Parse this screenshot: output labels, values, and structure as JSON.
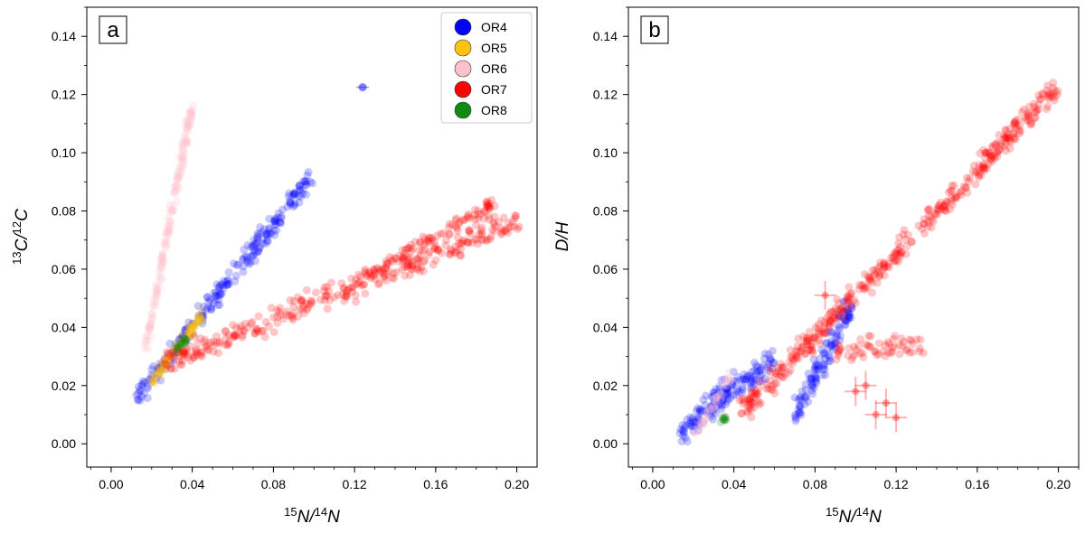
{
  "chart_data": [
    {
      "type": "scatter",
      "panel_label": "a",
      "xlabel": "15N/14N",
      "ylabel": "13C/12C",
      "xlim": [
        -0.012,
        0.21
      ],
      "ylim": [
        -0.008,
        0.15
      ],
      "xticks": [
        0.0,
        0.04,
        0.08,
        0.12,
        0.16,
        0.2
      ],
      "xtick_labels": [
        "0.00",
        "0.04",
        "0.08",
        "0.12",
        "0.16",
        "0.20"
      ],
      "yticks": [
        0.0,
        0.02,
        0.04,
        0.06,
        0.08,
        0.1,
        0.12,
        0.14
      ],
      "ytick_labels": [
        "0.00",
        "0.02",
        "0.04",
        "0.06",
        "0.08",
        "0.10",
        "0.12",
        "0.14"
      ],
      "legend_position": "top-right",
      "legend": [
        {
          "name": "OR4",
          "color": "#0000ff"
        },
        {
          "name": "OR5",
          "color": "#ffc20e"
        },
        {
          "name": "OR6",
          "color": "#ffc0cb"
        },
        {
          "name": "OR7",
          "color": "#ff0000"
        },
        {
          "name": "OR8",
          "color": "#138a13"
        }
      ],
      "series": [
        {
          "name": "OR4",
          "color": "#0000ff",
          "segments": [
            {
              "x0": 0.014,
              "y0": 0.017,
              "x1": 0.099,
              "y1": 0.092,
              "n": 240,
              "spread": 0.0028
            }
          ],
          "points": [
            {
              "x": 0.124,
              "y": 0.1225
            }
          ]
        },
        {
          "name": "OR5",
          "color": "#ffc20e",
          "segments": [
            {
              "x0": 0.02,
              "y0": 0.022,
              "x1": 0.045,
              "y1": 0.044,
              "n": 90,
              "spread": 0.0016
            }
          ]
        },
        {
          "name": "OR6",
          "color": "#ffc0cb",
          "segments": [
            {
              "x0": 0.016,
              "y0": 0.03,
              "x1": 0.04,
              "y1": 0.116,
              "n": 160,
              "spread": 0.0018
            }
          ]
        },
        {
          "name": "OR7",
          "color": "#ff0000",
          "segments": [
            {
              "x0": 0.027,
              "y0": 0.028,
              "x1": 0.2,
              "y1": 0.077,
              "n": 320,
              "spread": 0.0038
            },
            {
              "x0": 0.125,
              "y0": 0.058,
              "x1": 0.19,
              "y1": 0.083,
              "n": 90,
              "spread": 0.0018
            }
          ]
        },
        {
          "name": "OR8",
          "color": "#138a13",
          "segments": [
            {
              "x0": 0.031,
              "y0": 0.032,
              "x1": 0.037,
              "y1": 0.036,
              "n": 18,
              "spread": 0.0012
            }
          ]
        }
      ]
    },
    {
      "type": "scatter",
      "panel_label": "b",
      "xlabel": "15N/14N",
      "ylabel": "D/H",
      "xlim": [
        -0.012,
        0.21
      ],
      "ylim": [
        -0.008,
        0.15
      ],
      "xticks": [
        0.0,
        0.04,
        0.08,
        0.12,
        0.16,
        0.2
      ],
      "xtick_labels": [
        "0.00",
        "0.04",
        "0.08",
        "0.12",
        "0.16",
        "0.20"
      ],
      "yticks": [
        0.0,
        0.02,
        0.04,
        0.06,
        0.08,
        0.1,
        0.12,
        0.14
      ],
      "ytick_labels": [
        "0.00",
        "0.02",
        "0.04",
        "0.06",
        "0.08",
        "0.10",
        "0.12",
        "0.14"
      ],
      "series": [
        {
          "name": "OR4",
          "color": "#0000ff",
          "segments": [
            {
              "x0": 0.013,
              "y0": 0.004,
              "x1": 0.06,
              "y1": 0.03,
              "n": 160,
              "spread": 0.004
            },
            {
              "x0": 0.07,
              "y0": 0.01,
              "x1": 0.097,
              "y1": 0.046,
              "n": 120,
              "spread": 0.004
            }
          ]
        },
        {
          "name": "OR7",
          "color": "#ff0000",
          "segments": [
            {
              "x0": 0.045,
              "y0": 0.012,
              "x1": 0.2,
              "y1": 0.123,
              "n": 420,
              "spread": 0.0035
            },
            {
              "x0": 0.09,
              "y0": 0.032,
              "x1": 0.135,
              "y1": 0.035,
              "n": 60,
              "spread": 0.004
            }
          ],
          "error_points": [
            {
              "x": 0.11,
              "y": 0.01
            },
            {
              "x": 0.12,
              "y": 0.009
            },
            {
              "x": 0.105,
              "y": 0.02
            },
            {
              "x": 0.115,
              "y": 0.014
            },
            {
              "x": 0.1,
              "y": 0.018
            },
            {
              "x": 0.085,
              "y": 0.051
            }
          ]
        },
        {
          "name": "OR6",
          "color": "#ffc0cb",
          "segments": [
            {
              "x0": 0.02,
              "y0": 0.002,
              "x1": 0.038,
              "y1": 0.023,
              "n": 40,
              "spread": 0.002
            }
          ]
        },
        {
          "name": "OR8",
          "color": "#138a13",
          "segments": [
            {
              "x0": 0.033,
              "y0": 0.008,
              "x1": 0.036,
              "y1": 0.009,
              "n": 10,
              "spread": 0.0009
            }
          ]
        }
      ]
    }
  ]
}
